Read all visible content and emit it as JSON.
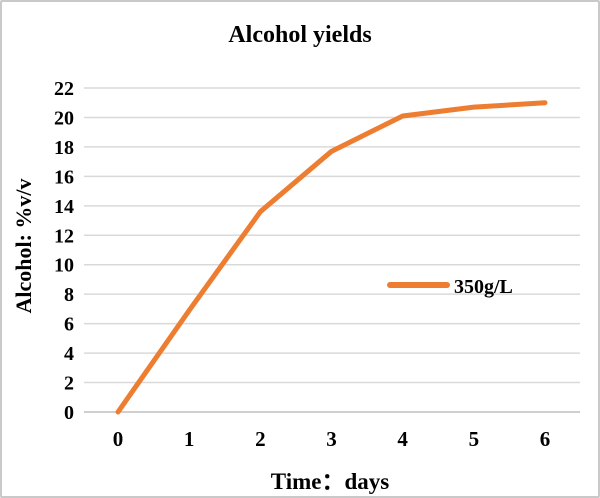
{
  "window": {
    "background": "#ffffff",
    "border_color": "#c9c9c9"
  },
  "chart_data": {
    "type": "line",
    "title": "Alcohol yields",
    "xlabel": "Time：days",
    "ylabel": "Alcohol: %v/v",
    "x": [
      0,
      1,
      2,
      3,
      4,
      5,
      6
    ],
    "x_ticks": [
      "0",
      "1",
      "2",
      "3",
      "4",
      "5",
      "6"
    ],
    "y_ticks": [
      0,
      2,
      4,
      6,
      8,
      10,
      12,
      14,
      16,
      18,
      20,
      22
    ],
    "xlim": [
      0,
      6
    ],
    "ylim": [
      0,
      22
    ],
    "grid": true,
    "series": [
      {
        "name": "350g/L",
        "values": [
          0,
          6.9,
          13.6,
          17.7,
          20.1,
          20.7,
          21
        ]
      }
    ],
    "legend": {
      "entries": [
        "350g/L"
      ],
      "position": "middle-right"
    },
    "colors": {
      "line": "#ED7D31",
      "gridline": "#D9D9D9",
      "axis": "#BFBFBF",
      "text": "#000000"
    }
  }
}
